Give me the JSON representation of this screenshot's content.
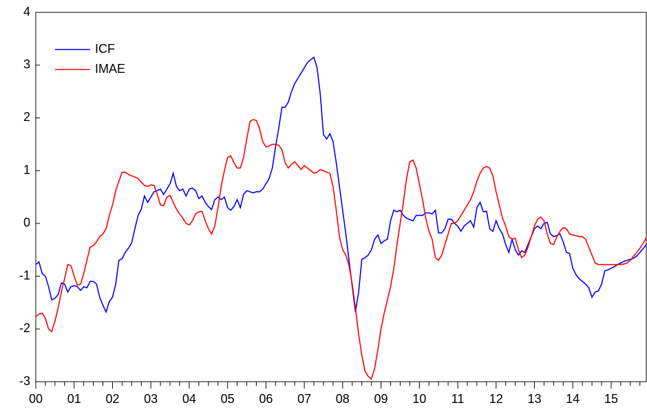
{
  "chart_data": {
    "type": "line",
    "categories": [
      "00",
      null,
      null,
      null,
      null,
      null,
      null,
      null,
      null,
      null,
      null,
      null,
      "01",
      null,
      null,
      null,
      null,
      null,
      null,
      null,
      null,
      null,
      null,
      null,
      "02",
      null,
      null,
      null,
      null,
      null,
      null,
      null,
      null,
      null,
      null,
      null,
      "03",
      null,
      null,
      null,
      null,
      null,
      null,
      null,
      null,
      null,
      null,
      null,
      "04",
      null,
      null,
      null,
      null,
      null,
      null,
      null,
      null,
      null,
      null,
      null,
      "05",
      null,
      null,
      null,
      null,
      null,
      null,
      null,
      null,
      null,
      null,
      null,
      "06",
      null,
      null,
      null,
      null,
      null,
      null,
      null,
      null,
      null,
      null,
      null,
      "07",
      null,
      null,
      null,
      null,
      null,
      null,
      null,
      null,
      null,
      null,
      null,
      "08",
      null,
      null,
      null,
      null,
      null,
      null,
      null,
      null,
      null,
      null,
      null,
      "09",
      null,
      null,
      null,
      null,
      null,
      null,
      null,
      null,
      null,
      null,
      null,
      "10",
      null,
      null,
      null,
      null,
      null,
      null,
      null,
      null,
      null,
      null,
      null,
      "11",
      null,
      null,
      null,
      null,
      null,
      null,
      null,
      null,
      null,
      null,
      null,
      "12",
      null,
      null,
      null,
      null,
      null,
      null,
      null,
      null,
      null,
      null,
      null,
      "13",
      null,
      null,
      null,
      null,
      null,
      null,
      null,
      null,
      null,
      null,
      null,
      "14",
      null,
      null,
      null,
      null,
      null,
      null,
      null,
      null,
      null,
      null,
      null,
      "15",
      null,
      null,
      null,
      null,
      null,
      null,
      null,
      null,
      null,
      null,
      null
    ],
    "series": [
      {
        "name": "ICF",
        "color": "#0000ff",
        "values": [
          -0.78,
          -0.73,
          -0.95,
          -1.0,
          -1.2,
          -1.45,
          -1.42,
          -1.35,
          -1.13,
          -1.15,
          -1.3,
          -1.2,
          -1.18,
          -1.2,
          -1.27,
          -1.2,
          -1.22,
          -1.1,
          -1.1,
          -1.15,
          -1.4,
          -1.55,
          -1.68,
          -1.48,
          -1.4,
          -1.15,
          -0.7,
          -0.67,
          -0.55,
          -0.47,
          -0.37,
          -0.1,
          0.15,
          0.27,
          0.52,
          0.4,
          0.5,
          0.6,
          0.62,
          0.65,
          0.55,
          0.65,
          0.75,
          0.95,
          0.7,
          0.62,
          0.65,
          0.52,
          0.65,
          0.67,
          0.62,
          0.47,
          0.52,
          0.4,
          0.32,
          0.26,
          0.45,
          0.5,
          0.45,
          0.5,
          0.3,
          0.25,
          0.32,
          0.45,
          0.3,
          0.55,
          0.62,
          0.6,
          0.58,
          0.6,
          0.6,
          0.65,
          0.75,
          0.85,
          1.05,
          1.45,
          1.8,
          2.2,
          2.2,
          2.3,
          2.5,
          2.65,
          2.75,
          2.85,
          2.95,
          3.05,
          3.1,
          3.15,
          2.95,
          2.45,
          1.68,
          1.6,
          1.7,
          1.55,
          1.15,
          0.7,
          0.25,
          -0.2,
          -0.7,
          -1.2,
          -1.68,
          -1.3,
          -0.68,
          -0.65,
          -0.6,
          -0.5,
          -0.3,
          -0.22,
          -0.38,
          -0.33,
          -0.3,
          0.05,
          0.25,
          0.22,
          0.25,
          0.15,
          0.1,
          0.07,
          0.05,
          0.15,
          0.15,
          0.15,
          0.2,
          0.2,
          0.18,
          0.25,
          -0.18,
          -0.18,
          -0.1,
          0.08,
          0.08,
          0.0,
          -0.05,
          -0.15,
          -0.05,
          0.0,
          0.05,
          -0.07,
          0.3,
          0.4,
          0.22,
          0.23,
          -0.1,
          -0.15,
          0.05,
          -0.1,
          -0.2,
          -0.4,
          -0.55,
          -0.3,
          -0.5,
          -0.6,
          -0.52,
          -0.55,
          -0.4,
          -0.25,
          -0.1,
          -0.05,
          -0.1,
          0.0,
          0.02,
          -0.2,
          -0.25,
          -0.23,
          -0.2,
          -0.35,
          -0.55,
          -0.57,
          -0.85,
          -0.97,
          -1.05,
          -1.1,
          -1.15,
          -1.22,
          -1.4,
          -1.3,
          -1.28,
          -1.15,
          -0.9,
          -0.88,
          -0.85,
          -0.82,
          -0.78,
          -0.75,
          -0.72,
          -0.7,
          -0.68,
          -0.66,
          -0.62,
          -0.55,
          -0.48,
          -0.4
        ]
      },
      {
        "name": "IMAE",
        "color": "#ff0000",
        "values": [
          -1.77,
          -1.72,
          -1.7,
          -1.8,
          -2.0,
          -2.05,
          -1.85,
          -1.6,
          -1.3,
          -1.05,
          -0.78,
          -0.8,
          -1.0,
          -1.17,
          -1.15,
          -0.95,
          -0.7,
          -0.45,
          -0.42,
          -0.35,
          -0.25,
          -0.2,
          -0.1,
          0.15,
          0.35,
          0.62,
          0.8,
          0.97,
          0.97,
          0.93,
          0.9,
          0.88,
          0.85,
          0.78,
          0.72,
          0.7,
          0.73,
          0.72,
          0.55,
          0.35,
          0.33,
          0.5,
          0.53,
          0.4,
          0.27,
          0.18,
          0.1,
          0.0,
          -0.03,
          0.05,
          0.18,
          0.22,
          0.23,
          0.05,
          -0.1,
          -0.2,
          -0.05,
          0.3,
          0.7,
          1.0,
          1.25,
          1.28,
          1.15,
          1.05,
          1.05,
          1.25,
          1.6,
          1.93,
          1.97,
          1.95,
          1.8,
          1.55,
          1.45,
          1.47,
          1.5,
          1.5,
          1.48,
          1.4,
          1.15,
          1.05,
          1.12,
          1.17,
          1.1,
          1.02,
          1.1,
          1.05,
          1.0,
          0.95,
          0.97,
          1.02,
          1.0,
          0.97,
          0.95,
          0.7,
          0.25,
          -0.25,
          -0.5,
          -0.6,
          -0.8,
          -1.15,
          -1.6,
          -2.1,
          -2.5,
          -2.8,
          -2.9,
          -2.95,
          -2.75,
          -2.4,
          -2.0,
          -1.7,
          -1.45,
          -1.2,
          -0.85,
          -0.4,
          0.0,
          0.4,
          0.85,
          1.17,
          1.2,
          1.05,
          0.75,
          0.45,
          0.1,
          -0.15,
          -0.3,
          -0.65,
          -0.7,
          -0.6,
          -0.4,
          -0.2,
          0.0,
          0.0,
          0.05,
          0.15,
          0.25,
          0.35,
          0.45,
          0.6,
          0.8,
          0.95,
          1.05,
          1.08,
          1.05,
          0.9,
          0.6,
          0.35,
          0.1,
          -0.05,
          -0.25,
          -0.3,
          -0.28,
          -0.5,
          -0.65,
          -0.6,
          -0.45,
          -0.25,
          -0.05,
          0.08,
          0.12,
          0.05,
          -0.2,
          -0.38,
          -0.4,
          -0.25,
          -0.15,
          -0.08,
          -0.1,
          -0.2,
          -0.22,
          -0.23,
          -0.25,
          -0.25,
          -0.3,
          -0.45,
          -0.6,
          -0.75,
          -0.78,
          -0.78,
          -0.78,
          -0.78,
          -0.78,
          -0.78,
          -0.78,
          -0.78,
          -0.77,
          -0.75,
          -0.7,
          -0.62,
          -0.55,
          -0.47,
          -0.38,
          -0.27
        ]
      }
    ],
    "ylim": [
      -3,
      4
    ],
    "yticks": [
      -3,
      -2,
      -1,
      0,
      1,
      2,
      3,
      4
    ],
    "grid": false,
    "legend": "upper-left"
  }
}
